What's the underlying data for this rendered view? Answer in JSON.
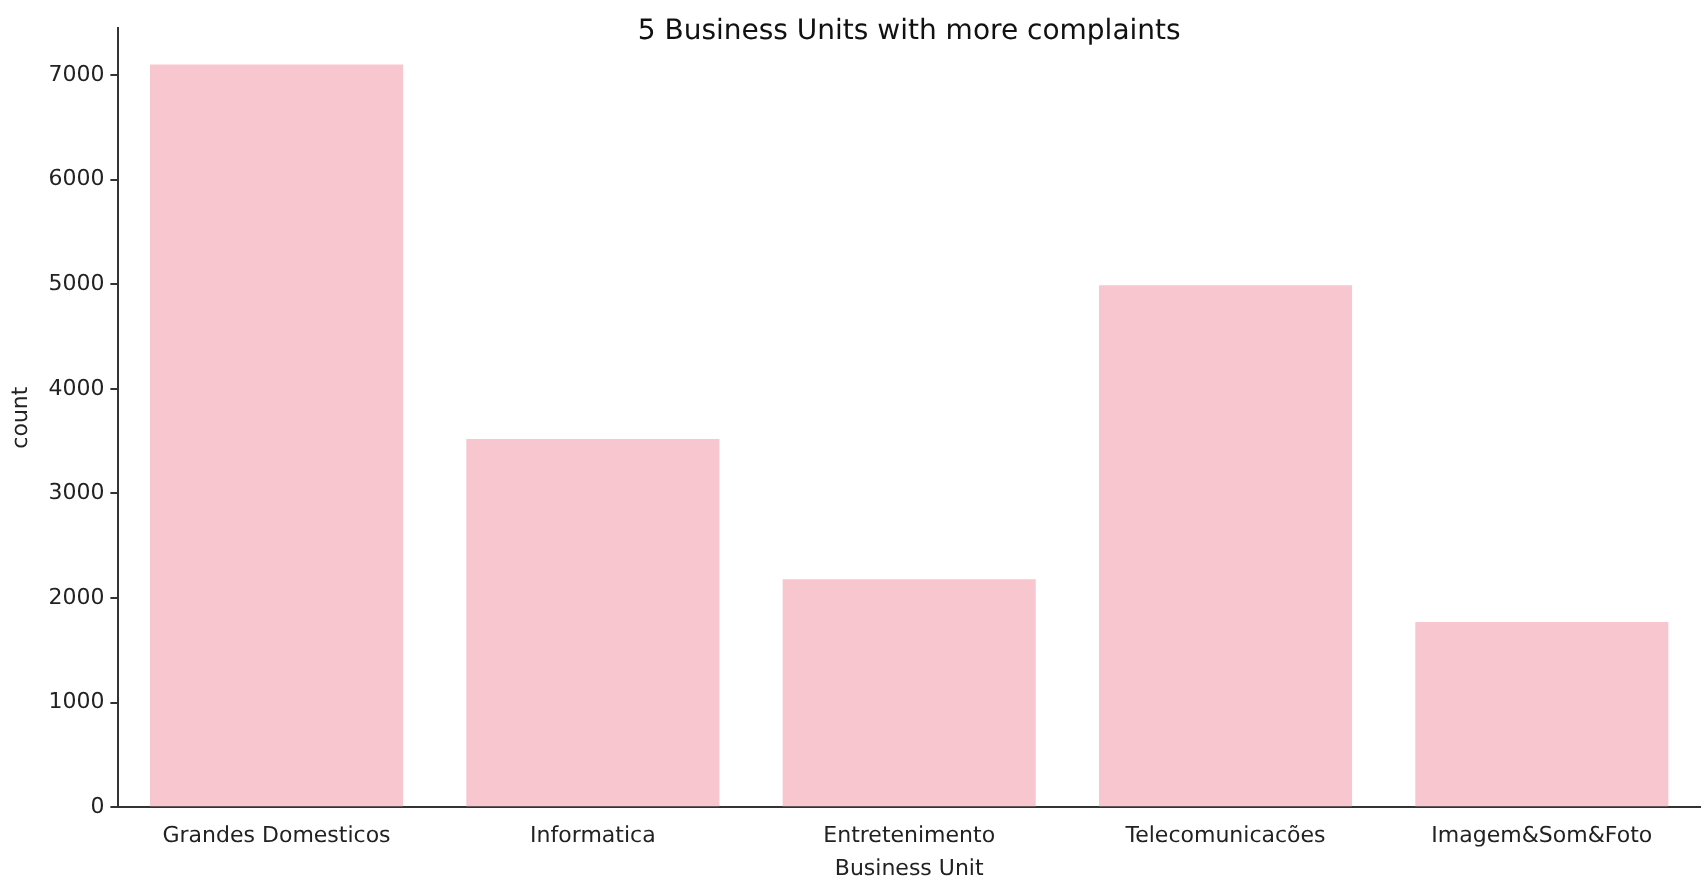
{
  "chart_data": {
    "type": "bar",
    "title": "5 Business Units with more complaints",
    "xlabel": "Business Unit",
    "ylabel": "count",
    "categories": [
      "Grandes Domesticos",
      "Informatica",
      "Entretenimento",
      "Telecomunicacões",
      "Imagem&Som&Foto"
    ],
    "values": [
      7100,
      3520,
      2180,
      4990,
      1770
    ],
    "color": "#f7c6ce",
    "ylim": [
      0,
      7450
    ],
    "yticks": [
      0,
      1000,
      2000,
      3000,
      4000,
      5000,
      6000,
      7000
    ],
    "grid": false,
    "legend": false
  }
}
